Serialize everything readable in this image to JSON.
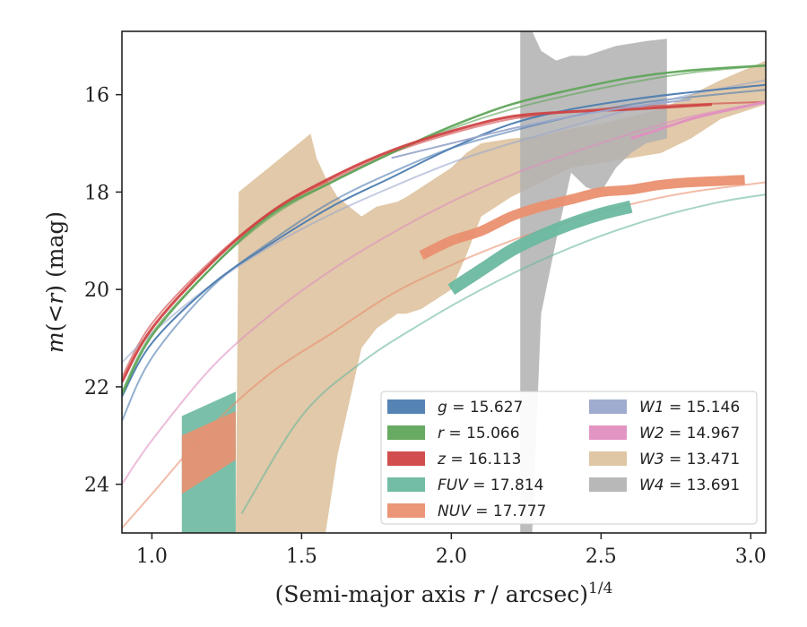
{
  "chart_data": {
    "type": "line",
    "title": "",
    "xlabel": {
      "prefix": "(Semi-major axis ",
      "var": "r",
      "suffix": " / arcsec)",
      "sup": "1/4"
    },
    "ylabel": {
      "m": "m",
      "open": "(<",
      "var": "r",
      "close": ") (mag)"
    },
    "xlim": [
      0.9,
      3.05
    ],
    "ylim": [
      25.0,
      14.7
    ],
    "y_inverted": true,
    "xticks": [
      1.0,
      1.5,
      2.0,
      2.5,
      3.0
    ],
    "xtick_labels": [
      "1.0",
      "1.5",
      "2.0",
      "2.5",
      "3.0"
    ],
    "yticks": [
      16,
      18,
      20,
      22,
      24
    ],
    "ytick_labels": [
      "16",
      "18",
      "20",
      "22",
      "24"
    ],
    "grid": false,
    "legend": {
      "placement": "lower-right",
      "columns": 2
    },
    "series": [
      {
        "band": "g",
        "value": "= 15.627",
        "color": "#4c7cb0",
        "model_x": [
          0.9,
          1.0,
          1.2,
          1.4,
          1.6,
          1.8,
          2.0,
          2.2,
          2.4,
          2.6,
          2.8,
          3.05
        ],
        "model_y": [
          22.7,
          21.4,
          19.95,
          19.0,
          18.2,
          17.6,
          17.1,
          16.75,
          16.45,
          16.2,
          16.05,
          15.9
        ],
        "data_x": [
          0.9,
          1.0,
          1.2,
          1.4,
          1.6,
          1.8,
          2.0,
          2.2,
          2.4,
          2.6,
          2.8,
          3.05
        ],
        "data_y": [
          22.2,
          21.1,
          19.9,
          19.05,
          18.3,
          17.7,
          17.1,
          16.6,
          16.3,
          16.1,
          15.95,
          15.8
        ],
        "data_width": 2
      },
      {
        "band": "r",
        "value": "= 15.066",
        "color": "#5fa55a",
        "model_x": [
          0.9,
          1.0,
          1.2,
          1.4,
          1.6,
          1.8,
          2.0,
          2.2,
          2.4,
          2.6,
          2.8,
          3.05
        ],
        "model_y": [
          22.1,
          20.9,
          19.55,
          18.5,
          17.8,
          17.2,
          16.7,
          16.3,
          16.0,
          15.75,
          15.55,
          15.4
        ],
        "data_x": [
          0.9,
          1.0,
          1.2,
          1.4,
          1.6,
          1.8,
          2.0,
          2.2,
          2.4,
          2.6,
          2.8,
          3.05
        ],
        "data_y": [
          22.15,
          20.95,
          19.55,
          18.45,
          17.8,
          17.2,
          16.65,
          16.2,
          15.9,
          15.65,
          15.5,
          15.4
        ],
        "data_width": 2.5
      },
      {
        "band": "z",
        "value": "= 16.113",
        "color": "#d04545",
        "model_x": [
          0.9,
          1.0,
          1.2,
          1.4,
          1.6,
          1.8,
          2.0,
          2.2,
          2.4,
          2.6,
          2.8,
          3.05
        ],
        "model_y": [
          21.8,
          20.7,
          19.4,
          18.4,
          17.75,
          17.2,
          16.8,
          16.5,
          16.35,
          16.25,
          16.2,
          16.15
        ],
        "data_x": [
          0.9,
          1.0,
          1.2,
          1.4,
          1.6,
          1.8,
          2.0,
          2.2,
          2.4,
          2.6,
          2.87
        ],
        "data_y": [
          21.9,
          20.8,
          19.45,
          18.4,
          17.7,
          17.15,
          16.75,
          16.45,
          16.35,
          16.3,
          16.2
        ],
        "data_width": 3
      },
      {
        "band": "FUV",
        "value": "= 17.814",
        "color": "#6cb8a0",
        "model_x": [
          1.3,
          1.5,
          1.7,
          1.9,
          2.1,
          2.3,
          2.5,
          2.7,
          2.9,
          3.05
        ],
        "model_y": [
          24.6,
          22.6,
          21.5,
          20.7,
          20.0,
          19.4,
          18.9,
          18.5,
          18.2,
          18.05
        ],
        "data_x": [
          2.0,
          2.1,
          2.2,
          2.3,
          2.4,
          2.5,
          2.6
        ],
        "data_y": [
          20.0,
          19.6,
          19.2,
          18.9,
          18.65,
          18.45,
          18.3
        ],
        "data_width": 14,
        "band_x": [
          1.1,
          1.28
        ],
        "band_lo": [
          22.6,
          22.1
        ],
        "band_hi": [
          25.0,
          25.0
        ]
      },
      {
        "band": "NUV",
        "value": "= 17.777",
        "color": "#ea9070",
        "model_x": [
          0.9,
          1.0,
          1.2,
          1.4,
          1.6,
          1.8,
          2.0,
          2.2,
          2.4,
          2.6,
          2.8,
          3.05
        ],
        "model_y": [
          24.9,
          24.2,
          22.8,
          21.7,
          20.9,
          20.1,
          19.5,
          19.0,
          18.6,
          18.25,
          18.0,
          17.8
        ],
        "data_x": [
          1.9,
          2.0,
          2.1,
          2.2,
          2.3,
          2.4,
          2.5,
          2.6,
          2.7,
          2.8,
          2.98
        ],
        "data_y": [
          19.3,
          19.0,
          18.8,
          18.5,
          18.3,
          18.15,
          18.0,
          17.95,
          17.85,
          17.8,
          17.75
        ],
        "data_width": 11,
        "band_x": [
          1.1,
          1.28
        ],
        "band_lo": [
          23.0,
          22.5
        ],
        "band_hi": [
          24.2,
          23.5
        ]
      },
      {
        "band": "W1",
        "value": "= 15.146",
        "color": "#9aa8cc",
        "model_x": [
          0.9,
          1.0,
          1.2,
          1.4,
          1.6,
          1.8,
          2.0,
          2.2,
          2.4,
          2.6,
          2.8,
          3.05
        ],
        "model_y": [
          21.5,
          20.9,
          19.9,
          19.1,
          18.45,
          17.9,
          17.4,
          17.0,
          16.65,
          16.3,
          16.0,
          15.7
        ],
        "data_x": [
          1.8,
          2.0,
          2.2,
          2.4,
          2.6,
          2.8
        ],
        "data_y": [
          17.3,
          17.0,
          16.7,
          16.45,
          16.25,
          16.1
        ],
        "data_width": 2
      },
      {
        "band": "W2",
        "value": "= 14.967",
        "color": "#e08fc0",
        "model_x": [
          0.9,
          1.0,
          1.2,
          1.4,
          1.6,
          1.8,
          2.0,
          2.2,
          2.4,
          2.6,
          2.8,
          3.05
        ],
        "model_y": [
          24.0,
          23.1,
          21.6,
          20.5,
          19.6,
          18.85,
          18.2,
          17.65,
          17.2,
          16.8,
          16.45,
          16.15
        ],
        "data_x": [
          2.6,
          2.7,
          2.8,
          2.9,
          3.05
        ],
        "data_y": [
          16.9,
          16.7,
          16.5,
          16.35,
          16.15
        ],
        "data_width": 3
      },
      {
        "band": "W3",
        "value": "= 13.471",
        "color": "#dcc09a",
        "band_x": [
          1.28,
          1.29,
          1.53,
          1.55,
          1.58,
          1.62,
          1.7,
          1.75,
          1.82,
          1.85,
          1.9,
          1.95,
          2.0,
          2.05,
          2.1,
          2.2,
          2.3,
          2.4,
          2.5,
          2.6,
          2.7,
          2.8,
          2.9,
          3.05
        ],
        "band_lo": [
          25.0,
          18.0,
          16.8,
          17.3,
          17.7,
          18.1,
          18.5,
          18.3,
          18.2,
          18.1,
          17.9,
          17.7,
          17.5,
          17.2,
          17.0,
          16.9,
          16.85,
          16.7,
          16.6,
          16.45,
          16.3,
          16.0,
          15.7,
          15.3
        ],
        "band_hi": [
          25.0,
          25.0,
          25.0,
          25.0,
          25.0,
          23.4,
          21.2,
          20.8,
          20.5,
          20.5,
          20.4,
          20.2,
          20.0,
          19.3,
          18.5,
          18.1,
          17.8,
          17.5,
          17.4,
          17.3,
          17.2,
          16.9,
          16.5,
          16.2
        ]
      },
      {
        "band": "W4",
        "value": "= 13.691",
        "color": "#b0b0b0",
        "band_x": [
          2.23,
          2.27,
          2.3,
          2.35,
          2.4,
          2.45,
          2.5,
          2.55,
          2.6,
          2.65,
          2.72
        ],
        "band_lo": [
          14.7,
          14.7,
          15.1,
          15.3,
          15.2,
          15.2,
          15.1,
          15.0,
          14.95,
          14.9,
          14.85
        ],
        "band_hi": [
          25.0,
          25.0,
          20.5,
          19.0,
          17.6,
          17.9,
          18.0,
          17.5,
          17.2,
          17.0,
          16.9
        ]
      }
    ]
  }
}
